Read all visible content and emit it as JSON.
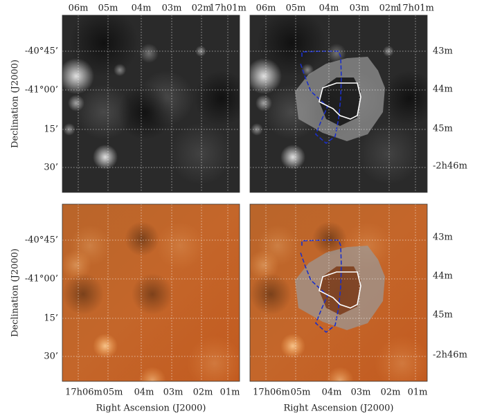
{
  "figure": {
    "top_ra_labels": [
      "06m",
      "05m",
      "04m",
      "03m",
      "02m",
      "17h01m"
    ],
    "bottom_ra_labels": [
      "17h06m",
      "05m",
      "04m",
      "03m",
      "02m",
      "01m"
    ],
    "dec_labels": [
      "-40°45’",
      "-41°00’",
      "15’",
      "30’"
    ],
    "right_labels": [
      "43m",
      "44m",
      "45m",
      "-2h46m"
    ],
    "x_label": "Right Ascension (J2000)",
    "y_label": "Declination (J2000)"
  }
}
